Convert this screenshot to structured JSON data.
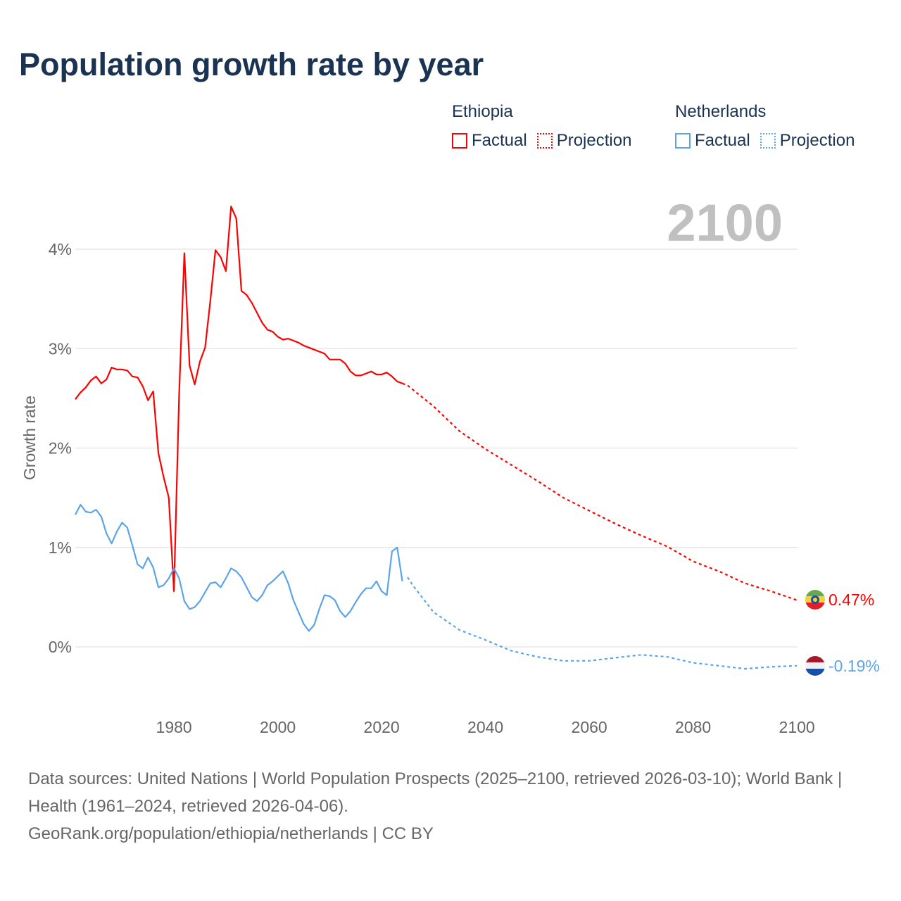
{
  "title": "Population growth rate by year",
  "legend": [
    {
      "country": "Ethiopia",
      "factual": "Factual",
      "projection": "Projection",
      "color": "#ff0000"
    },
    {
      "country": "Netherlands",
      "factual": "Factual",
      "projection": "Projection",
      "color": "#5ba4e8"
    }
  ],
  "year_watermark": "2100",
  "footer": {
    "line1": "Data sources: United Nations | World Population Prospects (2025–2100, retrieved 2026-03-10); World Bank | Health (1961–2024, retrieved 2026-04-06).",
    "line2": "GeoRank.org/population/ethiopia/netherlands | CC BY"
  },
  "chart_data": {
    "type": "line",
    "title": "Population growth rate by year",
    "xlabel": "",
    "ylabel": "Growth rate",
    "xlim": [
      1961,
      2100
    ],
    "ylim": [
      -0.65,
      4.6
    ],
    "x_ticks": [
      1980,
      2000,
      2020,
      2040,
      2060,
      2080,
      2100
    ],
    "x_tick_labels": [
      "1980",
      "2000",
      "2020",
      "2040",
      "2060",
      "2080",
      "2100"
    ],
    "y_ticks": [
      0,
      1,
      2,
      3,
      4
    ],
    "y_tick_labels": [
      "0%",
      "1%",
      "2%",
      "3%",
      "4%"
    ],
    "grid": true,
    "legend_position": "top-right",
    "series": [
      {
        "name": "Ethiopia",
        "color": "#ff0000",
        "flag": "ethiopia-flag",
        "end_label": "0.47%",
        "factual": {
          "x": [
            1961,
            1962,
            1963,
            1964,
            1965,
            1966,
            1967,
            1968,
            1969,
            1970,
            1971,
            1972,
            1973,
            1974,
            1975,
            1976,
            1977,
            1978,
            1979,
            1980,
            1981,
            1982,
            1983,
            1984,
            1985,
            1986,
            1987,
            1988,
            1989,
            1990,
            1991,
            1992,
            1993,
            1994,
            1995,
            1996,
            1997,
            1998,
            1999,
            2000,
            2001,
            2002,
            2003,
            2004,
            2005,
            2006,
            2007,
            2008,
            2009,
            2010,
            2011,
            2012,
            2013,
            2014,
            2015,
            2016,
            2017,
            2018,
            2019,
            2020,
            2021,
            2022,
            2023,
            2024
          ],
          "y": [
            2.49,
            2.56,
            2.61,
            2.68,
            2.72,
            2.65,
            2.69,
            2.81,
            2.79,
            2.79,
            2.78,
            2.72,
            2.71,
            2.62,
            2.48,
            2.57,
            1.95,
            1.71,
            1.5,
            0.56,
            2.54,
            3.96,
            2.83,
            2.64,
            2.87,
            3.01,
            3.48,
            3.99,
            3.92,
            3.78,
            4.43,
            4.31,
            3.58,
            3.54,
            3.46,
            3.36,
            3.26,
            3.19,
            3.17,
            3.12,
            3.09,
            3.1,
            3.08,
            3.06,
            3.03,
            3.01,
            2.99,
            2.97,
            2.95,
            2.89,
            2.89,
            2.89,
            2.85,
            2.77,
            2.73,
            2.73,
            2.75,
            2.77,
            2.74,
            2.74,
            2.76,
            2.72,
            2.67,
            2.65
          ]
        },
        "projection": {
          "x": [
            2024,
            2025,
            2030,
            2035,
            2040,
            2045,
            2050,
            2055,
            2060,
            2065,
            2070,
            2075,
            2080,
            2085,
            2090,
            2095,
            2100
          ],
          "y": [
            2.65,
            2.63,
            2.42,
            2.17,
            1.99,
            1.83,
            1.67,
            1.5,
            1.37,
            1.24,
            1.12,
            1.01,
            0.86,
            0.76,
            0.64,
            0.56,
            0.47
          ]
        }
      },
      {
        "name": "Netherlands",
        "color": "#5ba4e8",
        "flag": "netherlands-flag",
        "end_label": "-0.19%",
        "factual": {
          "x": [
            1961,
            1962,
            1963,
            1964,
            1965,
            1966,
            1967,
            1968,
            1969,
            1970,
            1971,
            1972,
            1973,
            1974,
            1975,
            1976,
            1977,
            1978,
            1979,
            1980,
            1981,
            1982,
            1983,
            1984,
            1985,
            1986,
            1987,
            1988,
            1989,
            1990,
            1991,
            1992,
            1993,
            1994,
            1995,
            1996,
            1997,
            1998,
            1999,
            2000,
            2001,
            2002,
            2003,
            2004,
            2005,
            2006,
            2007,
            2008,
            2009,
            2010,
            2011,
            2012,
            2013,
            2014,
            2015,
            2016,
            2017,
            2018,
            2019,
            2020,
            2021,
            2022,
            2023,
            2024
          ],
          "y": [
            1.33,
            1.43,
            1.36,
            1.35,
            1.38,
            1.31,
            1.14,
            1.04,
            1.16,
            1.25,
            1.2,
            1.02,
            0.83,
            0.79,
            0.9,
            0.8,
            0.6,
            0.62,
            0.69,
            0.79,
            0.69,
            0.46,
            0.38,
            0.4,
            0.46,
            0.55,
            0.64,
            0.65,
            0.6,
            0.69,
            0.79,
            0.76,
            0.7,
            0.6,
            0.5,
            0.46,
            0.52,
            0.62,
            0.66,
            0.71,
            0.76,
            0.64,
            0.47,
            0.35,
            0.23,
            0.16,
            0.22,
            0.38,
            0.52,
            0.51,
            0.47,
            0.36,
            0.3,
            0.36,
            0.45,
            0.53,
            0.59,
            0.59,
            0.66,
            0.56,
            0.52,
            0.96,
            1.0,
            0.66
          ]
        },
        "projection": {
          "x": [
            2025,
            2026,
            2030,
            2035,
            2040,
            2045,
            2050,
            2055,
            2060,
            2065,
            2070,
            2075,
            2080,
            2085,
            2090,
            2095,
            2100
          ],
          "y": [
            0.7,
            0.62,
            0.35,
            0.17,
            0.07,
            -0.04,
            -0.1,
            -0.14,
            -0.14,
            -0.11,
            -0.08,
            -0.1,
            -0.16,
            -0.19,
            -0.22,
            -0.2,
            -0.19
          ]
        }
      }
    ]
  }
}
